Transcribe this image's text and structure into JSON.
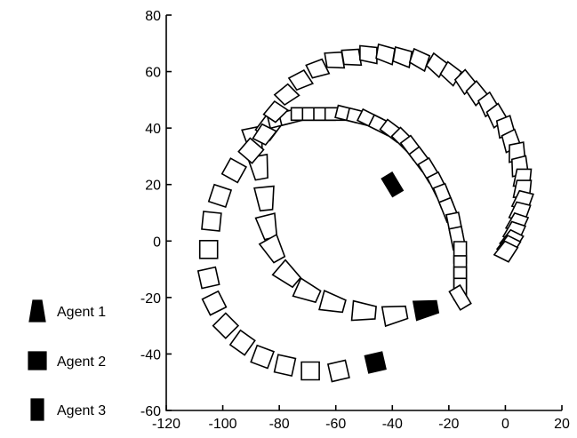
{
  "chart_data": {
    "type": "scatter",
    "title": "",
    "xlabel": "",
    "ylabel": "",
    "xlim": [
      -120,
      20
    ],
    "ylim": [
      -60,
      80
    ],
    "xticks": [
      -120,
      -100,
      -80,
      -60,
      -40,
      -20,
      0,
      20
    ],
    "yticks": [
      -60,
      -40,
      -20,
      0,
      20,
      40,
      60,
      80
    ],
    "legend_position": "left",
    "marker_style": "hollow trail markers, filled marker at current position",
    "series": [
      {
        "name": "Agent 1",
        "marker": "trapezoid",
        "final": [
          -28,
          -24
        ],
        "points": [
          [
            -89,
            36
          ],
          [
            -87,
            26
          ],
          [
            -85,
            15
          ],
          [
            -84,
            5
          ],
          [
            -82,
            -3
          ],
          [
            -77,
            -12
          ],
          [
            -70,
            -18
          ],
          [
            -61,
            -22
          ],
          [
            -50,
            -25
          ],
          [
            -39,
            -26
          ]
        ]
      },
      {
        "name": "Agent 2",
        "marker": "square",
        "final": [
          -46,
          -43
        ],
        "points": [
          [
            -84,
            40
          ],
          [
            -90,
            32
          ],
          [
            -96,
            25
          ],
          [
            -101,
            16
          ],
          [
            -104,
            7
          ],
          [
            -105,
            -3
          ],
          [
            -105,
            -13
          ],
          [
            -103,
            -22
          ],
          [
            -99,
            -30
          ],
          [
            -93,
            -36
          ],
          [
            -86,
            -41
          ],
          [
            -78,
            -44
          ],
          [
            -69,
            -46
          ],
          [
            -59,
            -46
          ]
        ]
      },
      {
        "name": "Agent 3",
        "marker": "rectangle",
        "final": [
          -40,
          20
        ],
        "points": [
          [
            -80,
            43
          ],
          [
            -76,
            44
          ],
          [
            -72,
            45
          ],
          [
            -68,
            45
          ],
          [
            -64,
            45
          ],
          [
            -60,
            45
          ],
          [
            -56,
            45
          ],
          [
            -52,
            44
          ],
          [
            -48,
            43
          ],
          [
            -44,
            41
          ],
          [
            -40,
            39
          ],
          [
            -36,
            36
          ],
          [
            -33,
            33
          ],
          [
            -30,
            29
          ],
          [
            -27,
            25
          ],
          [
            -24,
            20
          ],
          [
            -22,
            16
          ],
          [
            -20,
            11
          ],
          [
            -18,
            6
          ],
          [
            -17,
            1
          ],
          [
            -16,
            -4
          ],
          [
            -16,
            -9
          ],
          [
            -16,
            -13
          ],
          [
            -16,
            -17
          ],
          [
            -16,
            -20
          ]
        ]
      },
      {
        "name": "",
        "marker": "wedge",
        "final": null,
        "points": [
          [
            -85,
            38
          ],
          [
            -81,
            46
          ],
          [
            -77,
            52
          ],
          [
            -72,
            57
          ],
          [
            -66,
            61
          ],
          [
            -60,
            64
          ],
          [
            -54,
            65
          ],
          [
            -48,
            66
          ],
          [
            -42,
            66
          ],
          [
            -36,
            65
          ],
          [
            -30,
            64
          ],
          [
            -24,
            62
          ],
          [
            -19,
            59
          ],
          [
            -14,
            56
          ],
          [
            -10,
            52
          ],
          [
            -6,
            48
          ],
          [
            -3,
            44
          ],
          [
            0,
            40
          ],
          [
            2,
            35
          ],
          [
            4,
            31
          ],
          [
            5,
            26
          ],
          [
            6,
            22
          ],
          [
            6,
            18
          ],
          [
            6,
            14
          ],
          [
            5,
            10
          ],
          [
            4,
            6
          ],
          [
            3,
            3
          ],
          [
            2,
            0
          ],
          [
            1,
            -2
          ],
          [
            0,
            -4
          ]
        ]
      }
    ]
  }
}
